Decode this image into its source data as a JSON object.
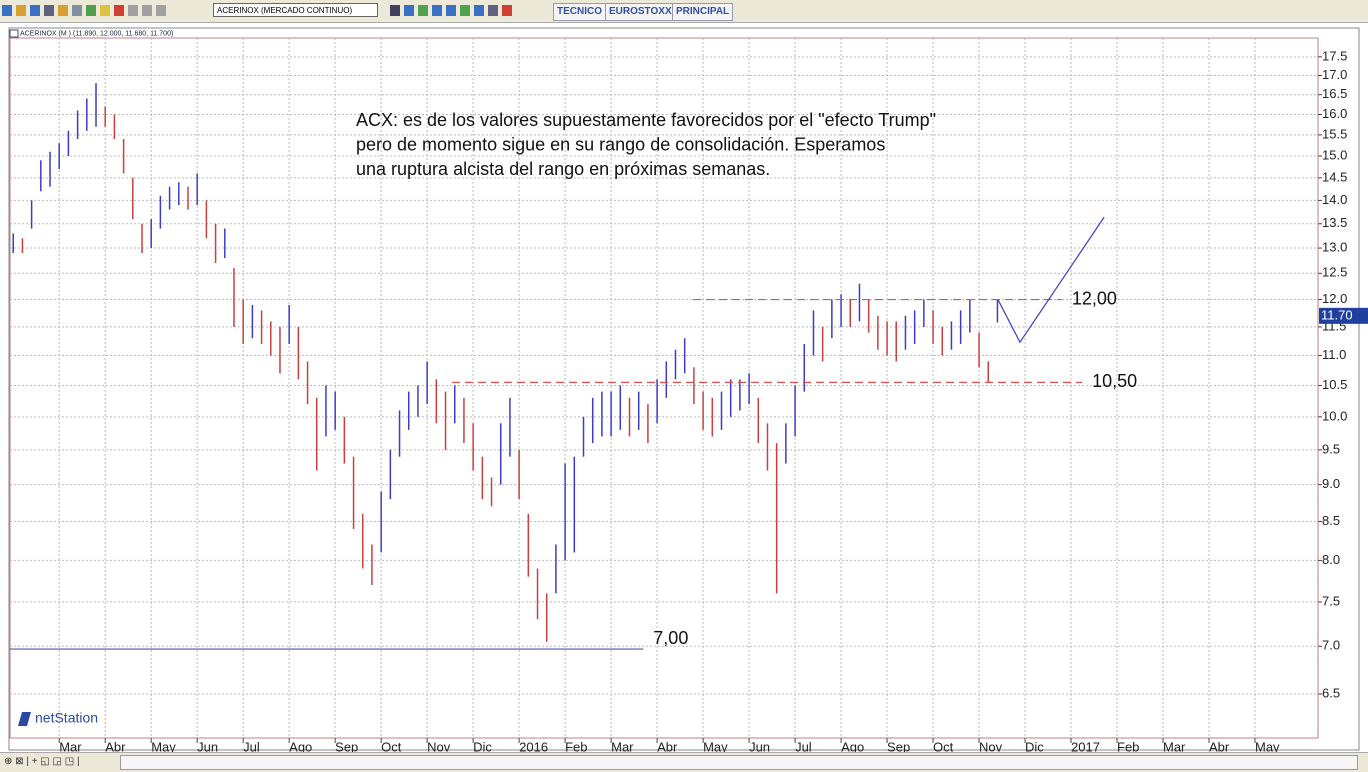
{
  "toolbar": {
    "symbol": "ACERINOX (MERCADO CONTINUO)",
    "tabs": [
      "TECNICO",
      "EUROSTOXX",
      "PRINCIPAL"
    ]
  },
  "chart_data": {
    "type": "ohlc",
    "title": "ACERINOX (M ) (11.890, 12.000, 11.680, 11.700)",
    "brand": "netStation",
    "log": true,
    "grid": true,
    "up_color": "#3c3cc8",
    "down_color": "#c84040",
    "ylim": [
      6.07,
      18.02
    ],
    "yticks": [
      6.5,
      {
        "value": 7,
        "label": "7.0"
      },
      7.5,
      {
        "value": 8,
        "label": "8.0"
      },
      8.5,
      {
        "value": 9,
        "label": "9.0"
      },
      9.5,
      {
        "value": 10,
        "label": "10.0"
      },
      10.5,
      {
        "value": 11,
        "label": "11.0"
      },
      11.5,
      {
        "value": 12,
        "label": "12.0"
      },
      12.5,
      {
        "value": 13,
        "label": "13.0"
      },
      13.5,
      {
        "value": 14,
        "label": "14.0"
      },
      14.5,
      {
        "value": 15,
        "label": "15.0"
      },
      15.5,
      {
        "value": 16,
        "label": "16.0"
      },
      16.5,
      {
        "value": 17,
        "label": "17.0"
      },
      17.5
    ],
    "xlim": [
      0.93,
      29.37
    ],
    "xticks": [
      {
        "value": 2,
        "label": "Mar"
      },
      {
        "value": 3,
        "label": "Abr"
      },
      {
        "value": 4,
        "label": "May"
      },
      {
        "value": 5,
        "label": "Jun"
      },
      {
        "value": 6,
        "label": "Jul"
      },
      {
        "value": 7,
        "label": "Ago"
      },
      {
        "value": 8,
        "label": "Sep"
      },
      {
        "value": 9,
        "label": "Oct"
      },
      {
        "value": 10,
        "label": "Nov"
      },
      {
        "value": 11,
        "label": "Dic"
      },
      {
        "value": 12,
        "label": "2016"
      },
      {
        "value": 13,
        "label": "Feb"
      },
      {
        "value": 14,
        "label": "Mar"
      },
      {
        "value": 15,
        "label": "Abr"
      },
      {
        "value": 16,
        "label": "May"
      },
      {
        "value": 17,
        "label": "Jun"
      },
      {
        "value": 18,
        "label": "Jul"
      },
      {
        "value": 19,
        "label": "Ago"
      },
      {
        "value": 20,
        "label": "Sep"
      },
      {
        "value": 21,
        "label": "Oct"
      },
      {
        "value": 22,
        "label": "Nov"
      },
      {
        "value": 23,
        "label": "Dic"
      },
      {
        "value": 24,
        "label": "2017"
      },
      {
        "value": 25,
        "label": "Feb"
      },
      {
        "value": 26,
        "label": "Mar"
      },
      {
        "value": 27,
        "label": "Abr"
      },
      {
        "value": 28,
        "label": "May"
      }
    ],
    "x": [
      1.0,
      1.2,
      1.4,
      1.6,
      1.8,
      2.0,
      2.2,
      2.4,
      2.6,
      2.8,
      3.0,
      3.2,
      3.4,
      3.6,
      3.8,
      4.0,
      4.2,
      4.4,
      4.6,
      4.8,
      5.0,
      5.2,
      5.4,
      5.6,
      5.8,
      6.0,
      6.2,
      6.4,
      6.6,
      6.8,
      7.0,
      7.2,
      7.4,
      7.6,
      7.8,
      8.0,
      8.2,
      8.4,
      8.6,
      8.8,
      9.0,
      9.2,
      9.4,
      9.6,
      9.8,
      10.0,
      10.2,
      10.4,
      10.6,
      10.8,
      11.0,
      11.2,
      11.4,
      11.6,
      11.8,
      12.0,
      12.2,
      12.4,
      12.6,
      12.8,
      13.0,
      13.2,
      13.4,
      13.6,
      13.8,
      14.0,
      14.2,
      14.4,
      14.6,
      14.8,
      15.0,
      15.2,
      15.4,
      15.6,
      15.8,
      16.0,
      16.2,
      16.4,
      16.6,
      16.8,
      17.0,
      17.2,
      17.4,
      17.6,
      17.8,
      18.0,
      18.2,
      18.4,
      18.6,
      18.8,
      19.0,
      19.2,
      19.4,
      19.6,
      19.8,
      20.0,
      20.2,
      20.4,
      20.6,
      20.8,
      21.0,
      21.2,
      21.4,
      21.6,
      21.8,
      22.0,
      22.2,
      22.4
    ],
    "high": [
      13.3,
      13.2,
      14.0,
      14.9,
      15.1,
      15.3,
      15.6,
      16.1,
      16.4,
      16.8,
      16.2,
      16.0,
      15.4,
      14.5,
      13.5,
      13.6,
      14.1,
      14.3,
      14.4,
      14.3,
      14.6,
      14.0,
      13.5,
      13.4,
      12.6,
      12.0,
      11.9,
      11.8,
      11.6,
      11.5,
      11.9,
      11.5,
      10.9,
      10.3,
      10.5,
      10.4,
      10.0,
      9.4,
      8.6,
      8.2,
      8.9,
      9.5,
      10.1,
      10.4,
      10.5,
      10.9,
      10.6,
      10.4,
      10.5,
      10.3,
      9.9,
      9.4,
      9.1,
      9.9,
      10.3,
      9.5,
      8.6,
      7.9,
      7.6,
      8.2,
      9.3,
      9.4,
      10.0,
      10.3,
      10.4,
      10.4,
      10.5,
      10.3,
      10.4,
      10.2,
      10.6,
      10.9,
      11.1,
      11.3,
      10.8,
      10.4,
      10.3,
      10.4,
      10.6,
      10.6,
      10.7,
      10.3,
      9.9,
      9.6,
      9.9,
      10.5,
      11.2,
      11.8,
      11.5,
      12.0,
      12.1,
      12.0,
      12.3,
      12.0,
      11.7,
      11.6,
      11.6,
      11.7,
      11.8,
      12.0,
      11.8,
      11.5,
      11.6,
      11.8,
      12.0,
      11.4,
      10.9,
      12.0
    ],
    "low": [
      12.9,
      12.9,
      13.4,
      14.2,
      14.3,
      14.7,
      15.0,
      15.4,
      15.6,
      15.7,
      15.7,
      15.4,
      14.6,
      13.6,
      12.9,
      13.0,
      13.4,
      13.8,
      13.9,
      13.8,
      13.9,
      13.2,
      12.7,
      12.8,
      11.5,
      11.2,
      11.3,
      11.2,
      11.0,
      10.7,
      11.2,
      10.6,
      10.2,
      9.2,
      9.7,
      9.8,
      9.3,
      8.4,
      7.9,
      7.7,
      8.1,
      8.8,
      9.4,
      9.8,
      10.0,
      10.2,
      9.9,
      9.5,
      9.9,
      9.6,
      9.2,
      8.8,
      8.7,
      9.0,
      9.4,
      8.8,
      7.8,
      7.3,
      7.05,
      7.6,
      8.0,
      8.1,
      9.4,
      9.6,
      9.7,
      9.7,
      9.8,
      9.7,
      9.8,
      9.6,
      9.9,
      10.3,
      10.6,
      10.7,
      10.2,
      9.8,
      9.7,
      9.8,
      10.0,
      10.1,
      10.2,
      9.6,
      9.2,
      7.6,
      9.3,
      9.7,
      10.4,
      11.0,
      10.9,
      11.3,
      11.5,
      11.5,
      11.6,
      11.4,
      11.1,
      11.0,
      10.9,
      11.1,
      11.2,
      11.5,
      11.2,
      11.0,
      11.1,
      11.2,
      11.4,
      10.8,
      10.55,
      11.58
    ],
    "last": {
      "value": 11.7,
      "label": "11.70"
    },
    "levels": [
      {
        "label": "12,00",
        "value": 12.0,
        "x": [
          15.78,
          23.8
        ],
        "color": "#e05050",
        "dashed": true
      },
      {
        "label": "10,50",
        "value": 10.55,
        "x": [
          10.54,
          24.24
        ],
        "color": "#e05050",
        "dashed": true
      },
      {
        "label": "7,00",
        "value": 6.97,
        "x": [
          0.93,
          14.7
        ],
        "color": "#5050b0",
        "dashed": false
      }
    ],
    "projection": {
      "x": [
        22.41,
        22.89,
        24.72
      ],
      "y": [
        12.0,
        11.23,
        13.64
      ],
      "color": "#3c3cc8"
    },
    "annotation": [
      "ACX:  es de los valores supuestamente favorecidos por el \"efecto Trump\"",
      "pero de momento sigue en su rango de consolidación. Esperamos",
      "una ruptura alcista del rango en próximas semanas."
    ]
  }
}
